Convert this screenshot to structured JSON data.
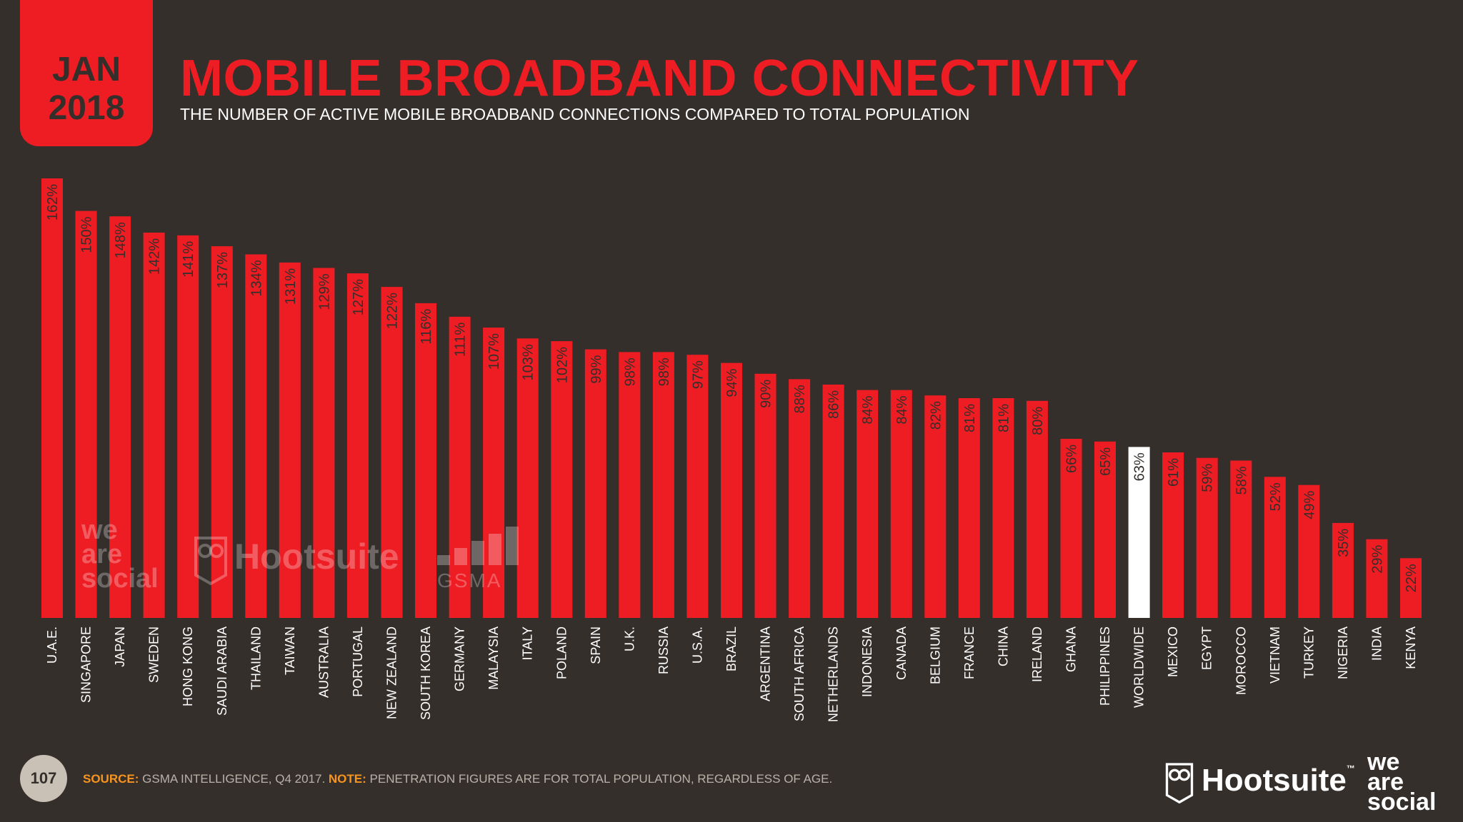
{
  "badge": {
    "month": "JAN",
    "year": "2018"
  },
  "header": {
    "title": "MOBILE BROADBAND CONNECTIVITY",
    "subtitle": "THE NUMBER OF ACTIVE MOBILE BROADBAND CONNECTIONS COMPARED TO TOTAL POPULATION"
  },
  "chart_data": {
    "type": "bar",
    "title": "MOBILE BROADBAND CONNECTIVITY",
    "categories": [
      "U.A.E.",
      "SINGAPORE",
      "JAPAN",
      "SWEDEN",
      "HONG KONG",
      "SAUDI ARABIA",
      "THAILAND",
      "TAIWAN",
      "AUSTRALIA",
      "PORTUGAL",
      "NEW ZEALAND",
      "SOUTH KOREA",
      "GERMANY",
      "MALAYSIA",
      "ITALY",
      "POLAND",
      "SPAIN",
      "U.K.",
      "RUSSIA",
      "U.S.A.",
      "BRAZIL",
      "ARGENTINA",
      "SOUTH AFRICA",
      "NETHERLANDS",
      "INDONESIA",
      "CANADA",
      "BELGIUM",
      "FRANCE",
      "CHINA",
      "IRELAND",
      "GHANA",
      "PHILIPPINES",
      "WORLDWIDE",
      "MEXICO",
      "EGYPT",
      "MOROCCO",
      "VIETNAM",
      "TURKEY",
      "NIGERIA",
      "INDIA",
      "KENYA"
    ],
    "values": [
      162,
      150,
      148,
      142,
      141,
      137,
      134,
      131,
      129,
      127,
      122,
      116,
      111,
      107,
      103,
      102,
      99,
      98,
      98,
      97,
      94,
      90,
      88,
      86,
      84,
      84,
      82,
      81,
      81,
      80,
      66,
      65,
      63,
      61,
      59,
      58,
      52,
      49,
      35,
      29,
      22
    ],
    "value_labels": [
      "162%",
      "150%",
      "148%",
      "142%",
      "141%",
      "137%",
      "134%",
      "131%",
      "129%",
      "127%",
      "122%",
      "116%",
      "111%",
      "107%",
      "103%",
      "102%",
      "99%",
      "98%",
      "98%",
      "97%",
      "94%",
      "90%",
      "88%",
      "86%",
      "84%",
      "84%",
      "82%",
      "81%",
      "81%",
      "80%",
      "66%",
      "65%",
      "63%",
      "61%",
      "59%",
      "58%",
      "52%",
      "49%",
      "35%",
      "29%",
      "22%"
    ],
    "highlight": "WORLDWIDE",
    "ylim": [
      0,
      162
    ],
    "xlabel": "",
    "ylabel": "",
    "grid": false,
    "colors": {
      "bar": "#ee1d23",
      "highlight": "#ffffff"
    }
  },
  "watermarks": {
    "we_are_social": [
      "we",
      "are",
      "social"
    ],
    "hootsuite": "Hootsuite",
    "gsma": "GSMA"
  },
  "footer": {
    "page_number": "107",
    "source_key": "SOURCE:",
    "source_text": " GSMA INTELLIGENCE, Q4 2017. ",
    "note_key": "NOTE:",
    "note_text": " PENETRATION FIGURES ARE FOR TOTAL POPULATION, REGARDLESS OF AGE.",
    "brand_hootsuite": "Hootsuite",
    "brand_tm": "™",
    "brand_was": [
      "we",
      "are",
      "social"
    ]
  },
  "colors": {
    "background": "#352f2c",
    "accent": "#ee1d23",
    "source_key": "#f7941d"
  }
}
